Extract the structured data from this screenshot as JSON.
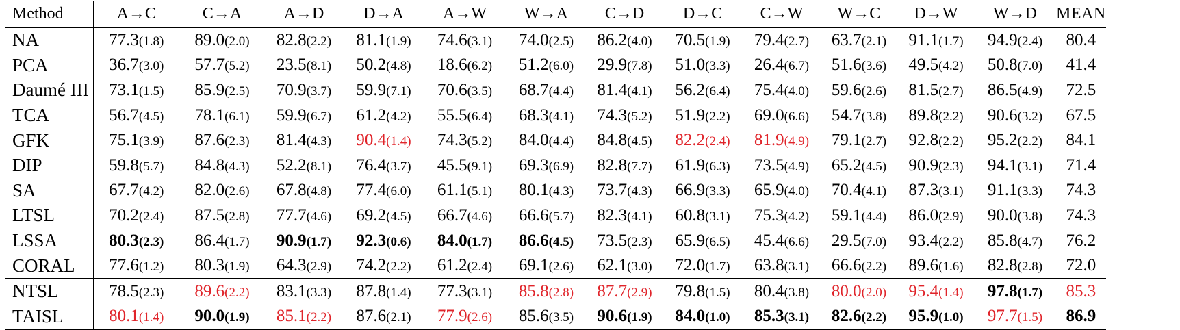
{
  "table": {
    "header": {
      "method": "Method",
      "tasks": [
        "A→C",
        "C→A",
        "A→D",
        "D→A",
        "A→W",
        "W→A",
        "C→D",
        "D→C",
        "C→W",
        "W→C",
        "D→W",
        "W→D"
      ],
      "mean": "MEAN"
    },
    "colors": {
      "text": "#000000",
      "highlight": "#e0242a"
    },
    "rows": [
      {
        "method": "NA",
        "sep": false,
        "cells": [
          {
            "v": "77.3",
            "sd": "(1.8)"
          },
          {
            "v": "89.0",
            "sd": "(2.0)"
          },
          {
            "v": "82.8",
            "sd": "(2.2)"
          },
          {
            "v": "81.1",
            "sd": "(1.9)"
          },
          {
            "v": "74.6",
            "sd": "(3.1)"
          },
          {
            "v": "74.0",
            "sd": "(2.5)"
          },
          {
            "v": "86.2",
            "sd": "(4.0)"
          },
          {
            "v": "70.5",
            "sd": "(1.9)"
          },
          {
            "v": "79.4",
            "sd": "(2.7)"
          },
          {
            "v": "63.7",
            "sd": "(2.1)"
          },
          {
            "v": "91.1",
            "sd": "(1.7)"
          },
          {
            "v": "94.9",
            "sd": "(2.4)"
          }
        ],
        "mean": {
          "v": "80.4"
        }
      },
      {
        "method": "PCA",
        "sep": false,
        "cells": [
          {
            "v": "36.7",
            "sd": "(3.0)"
          },
          {
            "v": "57.7",
            "sd": "(5.2)"
          },
          {
            "v": "23.5",
            "sd": "(8.1)"
          },
          {
            "v": "50.2",
            "sd": "(4.8)"
          },
          {
            "v": "18.6",
            "sd": "(6.2)"
          },
          {
            "v": "51.2",
            "sd": "(6.0)"
          },
          {
            "v": "29.9",
            "sd": "(7.8)"
          },
          {
            "v": "51.0",
            "sd": "(3.3)"
          },
          {
            "v": "26.4",
            "sd": "(6.7)"
          },
          {
            "v": "51.6",
            "sd": "(3.6)"
          },
          {
            "v": "49.5",
            "sd": "(4.2)"
          },
          {
            "v": "50.8",
            "sd": "(7.0)"
          }
        ],
        "mean": {
          "v": "41.4"
        }
      },
      {
        "method": "Daumé III",
        "sep": false,
        "cells": [
          {
            "v": "73.1",
            "sd": "(1.5)"
          },
          {
            "v": "85.9",
            "sd": "(2.5)"
          },
          {
            "v": "70.9",
            "sd": "(3.7)"
          },
          {
            "v": "59.9",
            "sd": "(7.1)"
          },
          {
            "v": "70.6",
            "sd": "(3.5)"
          },
          {
            "v": "68.7",
            "sd": "(4.4)"
          },
          {
            "v": "81.4",
            "sd": "(4.1)"
          },
          {
            "v": "56.2",
            "sd": "(6.4)"
          },
          {
            "v": "75.4",
            "sd": "(4.0)"
          },
          {
            "v": "59.6",
            "sd": "(2.6)"
          },
          {
            "v": "81.5",
            "sd": "(2.7)"
          },
          {
            "v": "86.5",
            "sd": "(4.9)"
          }
        ],
        "mean": {
          "v": "72.5"
        }
      },
      {
        "method": "TCA",
        "sep": false,
        "cells": [
          {
            "v": "56.7",
            "sd": "(4.5)"
          },
          {
            "v": "78.1",
            "sd": "(6.1)"
          },
          {
            "v": "59.9",
            "sd": "(6.7)"
          },
          {
            "v": "61.2",
            "sd": "(4.2)"
          },
          {
            "v": "55.5",
            "sd": "(6.4)"
          },
          {
            "v": "68.3",
            "sd": "(4.1)"
          },
          {
            "v": "74.3",
            "sd": "(5.2)"
          },
          {
            "v": "51.9",
            "sd": "(2.2)"
          },
          {
            "v": "69.0",
            "sd": "(6.6)"
          },
          {
            "v": "54.7",
            "sd": "(3.8)"
          },
          {
            "v": "89.8",
            "sd": "(2.2)"
          },
          {
            "v": "90.6",
            "sd": "(3.2)"
          }
        ],
        "mean": {
          "v": "67.5"
        }
      },
      {
        "method": "GFK",
        "sep": false,
        "cells": [
          {
            "v": "75.1",
            "sd": "(3.9)"
          },
          {
            "v": "87.6",
            "sd": "(2.3)"
          },
          {
            "v": "81.4",
            "sd": "(4.3)"
          },
          {
            "v": "90.4",
            "sd": "(1.4)",
            "red": true
          },
          {
            "v": "74.3",
            "sd": "(5.2)"
          },
          {
            "v": "84.0",
            "sd": "(4.4)"
          },
          {
            "v": "84.8",
            "sd": "(4.5)"
          },
          {
            "v": "82.2",
            "sd": "(2.4)",
            "red": true
          },
          {
            "v": "81.9",
            "sd": "(4.9)",
            "red": true
          },
          {
            "v": "79.1",
            "sd": "(2.7)"
          },
          {
            "v": "92.8",
            "sd": "(2.2)"
          },
          {
            "v": "95.2",
            "sd": "(2.2)"
          }
        ],
        "mean": {
          "v": "84.1"
        }
      },
      {
        "method": "DIP",
        "sep": false,
        "cells": [
          {
            "v": "59.8",
            "sd": "(5.7)"
          },
          {
            "v": "84.8",
            "sd": "(4.3)"
          },
          {
            "v": "52.2",
            "sd": "(8.1)"
          },
          {
            "v": "76.4",
            "sd": "(3.7)"
          },
          {
            "v": "45.5",
            "sd": "(9.1)"
          },
          {
            "v": "69.3",
            "sd": "(6.9)"
          },
          {
            "v": "82.8",
            "sd": "(7.7)"
          },
          {
            "v": "61.9",
            "sd": "(6.3)"
          },
          {
            "v": "73.5",
            "sd": "(4.9)"
          },
          {
            "v": "65.2",
            "sd": "(4.5)"
          },
          {
            "v": "90.9",
            "sd": "(2.3)"
          },
          {
            "v": "94.1",
            "sd": "(3.1)"
          }
        ],
        "mean": {
          "v": "71.4"
        }
      },
      {
        "method": "SA",
        "sep": false,
        "cells": [
          {
            "v": "67.7",
            "sd": "(4.2)"
          },
          {
            "v": "82.0",
            "sd": "(2.6)"
          },
          {
            "v": "67.8",
            "sd": "(4.8)"
          },
          {
            "v": "77.4",
            "sd": "(6.0)"
          },
          {
            "v": "61.1",
            "sd": "(5.1)"
          },
          {
            "v": "80.1",
            "sd": "(4.3)"
          },
          {
            "v": "73.7",
            "sd": "(4.3)"
          },
          {
            "v": "66.9",
            "sd": "(3.3)"
          },
          {
            "v": "65.9",
            "sd": "(4.0)"
          },
          {
            "v": "70.4",
            "sd": "(4.1)"
          },
          {
            "v": "87.3",
            "sd": "(3.1)"
          },
          {
            "v": "91.1",
            "sd": "(3.3)"
          }
        ],
        "mean": {
          "v": "74.3"
        }
      },
      {
        "method": "LTSL",
        "sep": false,
        "cells": [
          {
            "v": "70.2",
            "sd": "(2.4)"
          },
          {
            "v": "87.5",
            "sd": "(2.8)"
          },
          {
            "v": "77.7",
            "sd": "(4.6)"
          },
          {
            "v": "69.2",
            "sd": "(4.5)"
          },
          {
            "v": "66.7",
            "sd": "(4.6)"
          },
          {
            "v": "66.6",
            "sd": "(5.7)"
          },
          {
            "v": "82.3",
            "sd": "(4.1)"
          },
          {
            "v": "60.8",
            "sd": "(3.1)"
          },
          {
            "v": "75.3",
            "sd": "(4.2)"
          },
          {
            "v": "59.1",
            "sd": "(4.4)"
          },
          {
            "v": "86.0",
            "sd": "(2.9)"
          },
          {
            "v": "90.0",
            "sd": "(3.8)"
          }
        ],
        "mean": {
          "v": "74.3"
        }
      },
      {
        "method": "LSSA",
        "sep": false,
        "cells": [
          {
            "v": "80.3",
            "sd": "(2.3)",
            "bold": true
          },
          {
            "v": "86.4",
            "sd": "(1.7)"
          },
          {
            "v": "90.9",
            "sd": "(1.7)",
            "bold": true
          },
          {
            "v": "92.3",
            "sd": "(0.6)",
            "bold": true
          },
          {
            "v": "84.0",
            "sd": "(1.7)",
            "bold": true
          },
          {
            "v": "86.6",
            "sd": "(4.5)",
            "bold": true
          },
          {
            "v": "73.5",
            "sd": "(2.3)"
          },
          {
            "v": "65.9",
            "sd": "(6.5)"
          },
          {
            "v": "45.4",
            "sd": "(6.6)"
          },
          {
            "v": "29.5",
            "sd": "(7.0)"
          },
          {
            "v": "93.4",
            "sd": "(2.2)"
          },
          {
            "v": "85.8",
            "sd": "(4.7)"
          }
        ],
        "mean": {
          "v": "76.2"
        }
      },
      {
        "method": "CORAL",
        "sep": false,
        "cells": [
          {
            "v": "77.6",
            "sd": "(1.2)"
          },
          {
            "v": "80.3",
            "sd": "(1.9)"
          },
          {
            "v": "64.3",
            "sd": "(2.9)"
          },
          {
            "v": "74.2",
            "sd": "(2.2)"
          },
          {
            "v": "61.2",
            "sd": "(2.4)"
          },
          {
            "v": "69.1",
            "sd": "(2.6)"
          },
          {
            "v": "62.1",
            "sd": "(3.0)"
          },
          {
            "v": "72.0",
            "sd": "(1.7)"
          },
          {
            "v": "63.8",
            "sd": "(3.1)"
          },
          {
            "v": "66.6",
            "sd": "(2.2)"
          },
          {
            "v": "89.6",
            "sd": "(1.6)"
          },
          {
            "v": "82.8",
            "sd": "(2.8)"
          }
        ],
        "mean": {
          "v": "72.0"
        }
      },
      {
        "method": "NTSL",
        "sep": true,
        "cells": [
          {
            "v": "78.5",
            "sd": "(2.3)"
          },
          {
            "v": "89.6",
            "sd": "(2.2)",
            "red": true
          },
          {
            "v": "83.1",
            "sd": "(3.3)"
          },
          {
            "v": "87.8",
            "sd": "(1.4)"
          },
          {
            "v": "77.3",
            "sd": "(3.1)"
          },
          {
            "v": "85.8",
            "sd": "(2.8)",
            "red": true
          },
          {
            "v": "87.7",
            "sd": "(2.9)",
            "red": true
          },
          {
            "v": "79.8",
            "sd": "(1.5)"
          },
          {
            "v": "80.4",
            "sd": "(3.8)"
          },
          {
            "v": "80.0",
            "sd": "(2.0)",
            "red": true
          },
          {
            "v": "95.4",
            "sd": "(1.4)",
            "red": true
          },
          {
            "v": "97.8",
            "sd": "(1.7)",
            "bold": true
          }
        ],
        "mean": {
          "v": "85.3",
          "red": true
        }
      },
      {
        "method": "TAISL",
        "sep": false,
        "cells": [
          {
            "v": "80.1",
            "sd": "(1.4)",
            "red": true
          },
          {
            "v": "90.0",
            "sd": "(1.9)",
            "bold": true
          },
          {
            "v": "85.1",
            "sd": "(2.2)",
            "red": true
          },
          {
            "v": "87.6",
            "sd": "(2.1)"
          },
          {
            "v": "77.9",
            "sd": "(2.6)",
            "red": true
          },
          {
            "v": "85.6",
            "sd": "(3.5)"
          },
          {
            "v": "90.6",
            "sd": "(1.9)",
            "bold": true
          },
          {
            "v": "84.0",
            "sd": "(1.0)",
            "bold": true
          },
          {
            "v": "85.3",
            "sd": "(3.1)",
            "bold": true
          },
          {
            "v": "82.6",
            "sd": "(2.2)",
            "bold": true
          },
          {
            "v": "95.9",
            "sd": "(1.0)",
            "bold": true
          },
          {
            "v": "97.7",
            "sd": "(1.5)",
            "red": true
          }
        ],
        "mean": {
          "v": "86.9",
          "bold": true
        }
      }
    ]
  }
}
